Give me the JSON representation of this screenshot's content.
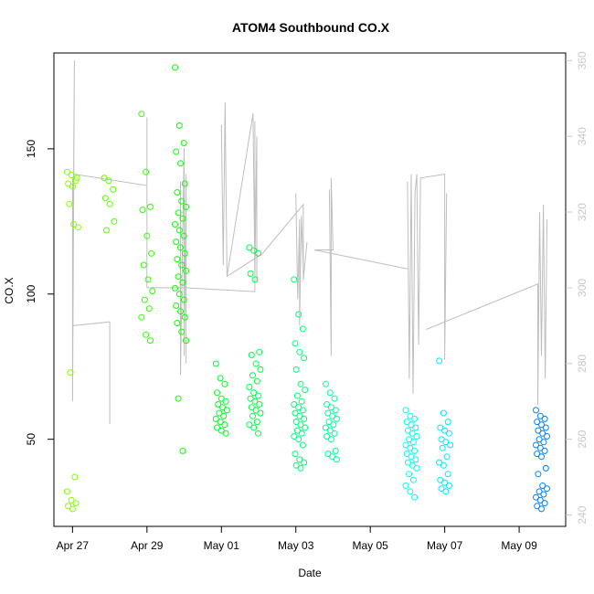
{
  "chart_data": {
    "type": "scatter",
    "title": "ATOM4 Southbound CO.X",
    "xlabel": "Date",
    "ylabel": "CO.X",
    "x_ticks": [
      "Apr 27",
      "Apr 29",
      "May 01",
      "May 03",
      "May 05",
      "May 07",
      "May 09"
    ],
    "x_tick_days": [
      0,
      2,
      4,
      6,
      8,
      10,
      12
    ],
    "y_ticks": [
      50,
      100,
      150
    ],
    "y2_ticks": [
      240,
      260,
      280,
      300,
      320,
      340,
      360
    ],
    "xlim_days": [
      -0.5,
      13.25
    ],
    "ylim": [
      20,
      183
    ],
    "y2lim": [
      237,
      362
    ],
    "points_color_start": "#80ff00",
    "points_color_end": "#0080ff",
    "secondary_line_color": "#bebebe",
    "scatter_groups": [
      {
        "day": 0.0,
        "values": [
          142,
          141,
          139,
          138,
          137,
          140,
          131,
          124,
          123,
          73,
          37,
          32,
          29,
          28,
          27,
          26
        ]
      },
      {
        "day": 1.0,
        "values": [
          140,
          139,
          136,
          133,
          131,
          125,
          122
        ]
      },
      {
        "day": 2.0,
        "values": [
          162,
          142,
          130,
          129,
          120,
          114,
          110,
          105,
          101,
          98,
          95,
          92,
          86,
          84
        ]
      },
      {
        "day": 2.9,
        "values": [
          178,
          158,
          152,
          149,
          145,
          138,
          135,
          132,
          130,
          128,
          126,
          124,
          122,
          120,
          118,
          116,
          114,
          112,
          110,
          108,
          106,
          104,
          102,
          100,
          98,
          96,
          94,
          92,
          90,
          87,
          84,
          64,
          46
        ]
      },
      {
        "day": 4.0,
        "values": [
          76,
          71,
          69,
          66,
          64,
          63,
          62,
          61,
          60,
          59,
          58,
          57,
          56,
          55,
          54,
          53,
          52
        ]
      },
      {
        "day": 4.9,
        "values": [
          116,
          115,
          114,
          107,
          105,
          80,
          79,
          76,
          74,
          72,
          70,
          68,
          66,
          65,
          64,
          63,
          62,
          61,
          60,
          59,
          58,
          56,
          55,
          54,
          52
        ]
      },
      {
        "day": 6.1,
        "values": [
          105,
          93,
          88,
          83,
          80,
          78,
          74,
          69,
          67,
          65,
          63,
          62,
          61,
          60,
          59,
          58,
          57,
          56,
          55,
          54,
          53,
          52,
          51,
          50,
          48,
          45,
          43,
          42,
          41,
          40
        ]
      },
      {
        "day": 6.95,
        "values": [
          69,
          66,
          64,
          62,
          61,
          60,
          59,
          58,
          57,
          56,
          55,
          54,
          53,
          52,
          51,
          50,
          46,
          45,
          44,
          43
        ]
      },
      {
        "day": 9.1,
        "values": [
          60,
          58,
          57,
          56,
          55,
          54,
          53,
          52,
          51,
          50,
          49,
          48,
          47,
          46,
          45,
          44,
          43,
          42,
          41,
          40,
          38,
          36,
          34,
          32,
          30
        ]
      },
      {
        "day": 10.0,
        "values": [
          77,
          59,
          56,
          54,
          53,
          52,
          50,
          49,
          48,
          47,
          44,
          42,
          41,
          38,
          36,
          35,
          34,
          33,
          32
        ]
      },
      {
        "day": 12.6,
        "values": [
          60,
          58,
          57,
          56,
          55,
          54,
          53,
          52,
          51,
          50,
          49,
          48,
          47,
          46,
          45,
          44,
          40,
          38,
          34,
          33,
          32,
          31,
          30,
          29,
          28,
          27,
          26
        ]
      }
    ],
    "secondary_series": {
      "name": "",
      "axis": "right",
      "segments": [
        [
          [
            0.0,
            329
          ],
          [
            0.0,
            270
          ],
          [
            0.05,
            360
          ],
          [
            0.0,
            290
          ],
          [
            1.0,
            291
          ],
          [
            1.0,
            264
          ],
          [
            1.0,
            282
          ]
        ],
        [
          [
            0.05,
            330
          ],
          [
            2.0,
            327
          ],
          [
            2.0,
            300
          ],
          [
            2.0,
            345
          ],
          [
            2.0,
            300
          ],
          [
            3.0,
            300
          ]
        ],
        [
          [
            2.9,
            328
          ],
          [
            2.9,
            277
          ],
          [
            3.0,
            337
          ],
          [
            3.0,
            282
          ],
          [
            3.05,
            330
          ],
          [
            3.05,
            280
          ]
        ],
        [
          [
            3.0,
            300
          ],
          [
            4.9,
            299
          ],
          [
            4.9,
            344
          ]
        ],
        [
          [
            4.0,
            343
          ],
          [
            4.05,
            306
          ],
          [
            4.1,
            349
          ],
          [
            4.15,
            303
          ],
          [
            4.85,
            346
          ],
          [
            4.9,
            304
          ],
          [
            4.95,
            340
          ],
          [
            4.95,
            302
          ]
        ],
        [
          [
            4.15,
            303
          ],
          [
            5.1,
            309
          ],
          [
            6.2,
            322
          ],
          [
            6.2,
            302
          ],
          [
            6.3,
            312
          ]
        ],
        [
          [
            6.0,
            325
          ],
          [
            6.05,
            297
          ],
          [
            6.1,
            318
          ],
          [
            6.1,
            290
          ],
          [
            6.15,
            319
          ],
          [
            6.2,
            305
          ]
        ],
        [
          [
            6.9,
            326
          ],
          [
            6.95,
            282
          ],
          [
            6.95,
            329
          ],
          [
            7.0,
            310
          ],
          [
            6.5,
            310
          ],
          [
            9.0,
            305
          ]
        ],
        [
          [
            9.0,
            328
          ],
          [
            9.05,
            276
          ],
          [
            9.1,
            330
          ],
          [
            9.15,
            272
          ],
          [
            9.2,
            325
          ],
          [
            9.25,
            330
          ],
          [
            9.3,
            285
          ],
          [
            9.35,
            329
          ],
          [
            10.0,
            330
          ],
          [
            10.0,
            281
          ],
          [
            10.05,
            325
          ]
        ],
        [
          [
            9.5,
            289
          ],
          [
            12.5,
            301
          ],
          [
            12.5,
            269
          ],
          [
            12.55,
            320
          ],
          [
            12.6,
            282
          ],
          [
            12.65,
            322
          ],
          [
            12.7,
            276
          ],
          [
            12.75,
            318
          ]
        ]
      ]
    }
  }
}
